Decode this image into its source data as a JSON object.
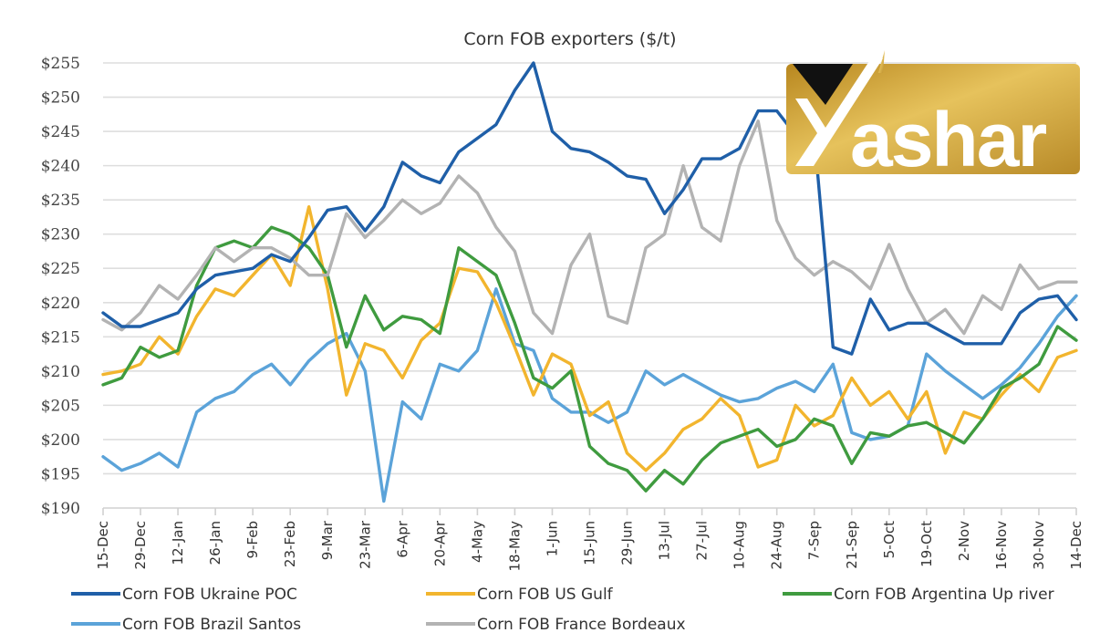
{
  "chart_data": {
    "type": "line",
    "title": "Corn FOB exporters ($/t)",
    "xlabel": "",
    "ylabel": "",
    "ylim": [
      190,
      255
    ],
    "y_ticks": [
      "$190",
      "$195",
      "$200",
      "$205",
      "$210",
      "$215",
      "$220",
      "$225",
      "$230",
      "$235",
      "$240",
      "$245",
      "$250",
      "$255"
    ],
    "y_tick_values": [
      190,
      195,
      200,
      205,
      210,
      215,
      220,
      225,
      230,
      235,
      240,
      245,
      250,
      255
    ],
    "x_ticks": [
      "15-Dec",
      "29-Dec",
      "12-Jan",
      "26-Jan",
      "9-Feb",
      "23-Feb",
      "9-Mar",
      "23-Mar",
      "6-Apr",
      "20-Apr",
      "4-May",
      "18-May",
      "1-Jun",
      "15-Jun",
      "29-Jun",
      "13-Jul",
      "27-Jul",
      "10-Aug",
      "24-Aug",
      "7-Sep",
      "21-Sep",
      "5-Oct",
      "19-Oct",
      "2-Nov",
      "16-Nov",
      "30-Nov",
      "14-Dec"
    ],
    "x_note": "weekly observations; every second point falls on an x tick",
    "grid": true,
    "legend_position": "bottom",
    "series": [
      {
        "name": "Corn FOB Ukraine POC",
        "color": "#1f5fa8",
        "values": [
          218.5,
          216.5,
          216.5,
          217.5,
          218.5,
          222,
          224,
          224.5,
          225,
          227,
          226,
          229.5,
          233.5,
          234,
          230.5,
          234,
          240.5,
          238.5,
          237.5,
          242,
          244,
          246,
          251,
          255,
          245,
          242.5,
          242,
          240.5,
          238.5,
          238,
          233,
          236.5,
          241,
          241,
          242.5,
          248,
          248,
          244.5,
          244.5,
          213.5,
          212.5,
          220.5,
          216,
          217,
          217,
          215.5,
          214,
          214,
          214,
          218.5,
          220.5,
          221,
          217.5
        ]
      },
      {
        "name": "Corn FOB US Gulf",
        "color": "#f2b52e",
        "values": [
          209.5,
          210,
          211,
          215,
          212.5,
          218,
          222,
          221,
          224,
          227,
          222.5,
          234,
          222,
          206.5,
          214,
          213,
          209,
          214.5,
          217,
          225,
          224.5,
          220,
          213.5,
          206.5,
          212.5,
          211,
          203.5,
          205.5,
          198,
          195.5,
          198,
          201.5,
          203,
          206,
          203.5,
          196,
          197,
          205,
          202,
          203.5,
          209,
          205,
          207,
          203,
          207,
          198,
          204,
          203,
          206.5,
          209.5,
          207,
          212,
          213
        ]
      },
      {
        "name": "Corn FOB Argentina Up river",
        "color": "#3f9b3f",
        "values": [
          208,
          209,
          213.5,
          212,
          213,
          222.5,
          228,
          229,
          228,
          231,
          230,
          228,
          224,
          213.5,
          221,
          216,
          218,
          217.5,
          215.5,
          228,
          226,
          224,
          217,
          209,
          207.5,
          210,
          199,
          196.5,
          195.5,
          192.5,
          195.5,
          193.5,
          197,
          199.5,
          200.5,
          201.5,
          199,
          200,
          203,
          202,
          196.5,
          201,
          200.5,
          202,
          202.5,
          201,
          199.5,
          203,
          207.5,
          209,
          211,
          216.5,
          214.5
        ]
      },
      {
        "name": "Corn FOB Brazil Santos",
        "color": "#5ba3d9",
        "values": [
          197.5,
          195.5,
          196.5,
          198,
          196,
          204,
          206,
          207,
          209.5,
          211,
          208,
          211.5,
          214,
          215.5,
          210,
          191,
          205.5,
          203,
          211,
          210,
          213,
          222,
          214,
          213,
          206,
          204,
          204,
          202.5,
          204,
          210,
          208,
          209.5,
          208,
          206.5,
          205.5,
          206,
          207.5,
          208.5,
          207,
          211,
          201,
          200,
          200.5,
          202,
          212.5,
          210,
          208,
          206,
          208,
          210.5,
          214,
          218,
          221
        ]
      },
      {
        "name": "Corn FOB France Bordeaux",
        "color": "#b3b3b3",
        "values": [
          217.5,
          216,
          218.5,
          222.5,
          220.5,
          224,
          228,
          226,
          228,
          228,
          226.5,
          224,
          224,
          233,
          229.5,
          232,
          235,
          233,
          234.5,
          238.5,
          236,
          231,
          227.5,
          218.5,
          215.5,
          225.5,
          230,
          218,
          217,
          228,
          230,
          240,
          231,
          229,
          240,
          246.5,
          232,
          226.5,
          224,
          226,
          224.5,
          222,
          228.5,
          222,
          217,
          219,
          215.5,
          221,
          219,
          225.5,
          222,
          223,
          223
        ]
      }
    ]
  },
  "logo": {
    "text": "ashar",
    "initial": "Y",
    "colors": {
      "gold": "#c99a2e",
      "gold_light": "#e4c15a",
      "black": "#111111"
    }
  }
}
